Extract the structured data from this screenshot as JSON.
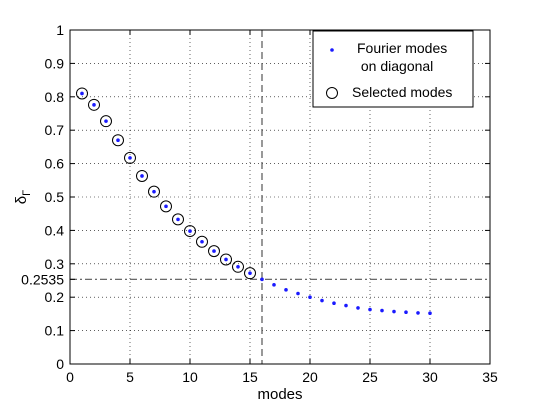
{
  "chart_data": {
    "type": "scatter",
    "title": "",
    "xlabel": "modes",
    "ylabel": "δΓ",
    "ylabel_main": "δ",
    "ylabel_sub": "Γ",
    "xlim": [
      0,
      35
    ],
    "ylim": [
      0,
      1
    ],
    "xticks": [
      0,
      5,
      10,
      15,
      20,
      25,
      30,
      35
    ],
    "yticks": [
      0,
      0.1,
      0.2,
      0.3,
      0.4,
      0.5,
      0.6,
      0.7,
      0.8,
      0.9,
      1
    ],
    "xtick_labels": [
      "0",
      "5",
      "10",
      "15",
      "20",
      "25",
      "30",
      "35"
    ],
    "ytick_labels": [
      "0",
      "0.1",
      "0.2",
      "0.3",
      "0.4",
      "0.5",
      "0.6",
      "0.7",
      "0.8",
      "0.9",
      "1"
    ],
    "grid": true,
    "legend_position": "top-right",
    "series": [
      {
        "name": "Fourier modes on diagonal",
        "legend_lines": [
          "Fourier modes",
          " on diagonal"
        ],
        "marker": "dot",
        "color": "#1a1aff",
        "x": [
          1,
          2,
          3,
          4,
          5,
          6,
          7,
          8,
          9,
          10,
          11,
          12,
          13,
          14,
          15,
          16,
          17,
          18,
          19,
          20,
          21,
          22,
          23,
          24,
          25,
          26,
          27,
          28,
          29,
          30
        ],
        "y": [
          0.81,
          0.776,
          0.727,
          0.67,
          0.617,
          0.563,
          0.516,
          0.472,
          0.433,
          0.398,
          0.366,
          0.338,
          0.313,
          0.291,
          0.272,
          0.2535,
          0.237,
          0.222,
          0.211,
          0.2,
          0.19,
          0.182,
          0.175,
          0.168,
          0.163,
          0.16,
          0.157,
          0.155,
          0.153,
          0.152
        ]
      },
      {
        "name": "Selected modes",
        "legend_lines": [
          "Selected modes"
        ],
        "marker": "circle",
        "color": "#000000",
        "x": [
          1,
          2,
          3,
          4,
          5,
          6,
          7,
          8,
          9,
          10,
          11,
          12,
          13,
          14,
          15
        ],
        "y": [
          0.81,
          0.776,
          0.727,
          0.67,
          0.617,
          0.563,
          0.516,
          0.472,
          0.433,
          0.398,
          0.366,
          0.338,
          0.313,
          0.291,
          0.272
        ]
      }
    ],
    "reference_lines": {
      "vertical_x": 16,
      "horizontal_y": 0.2535,
      "horizontal_label": "0.2535"
    }
  }
}
